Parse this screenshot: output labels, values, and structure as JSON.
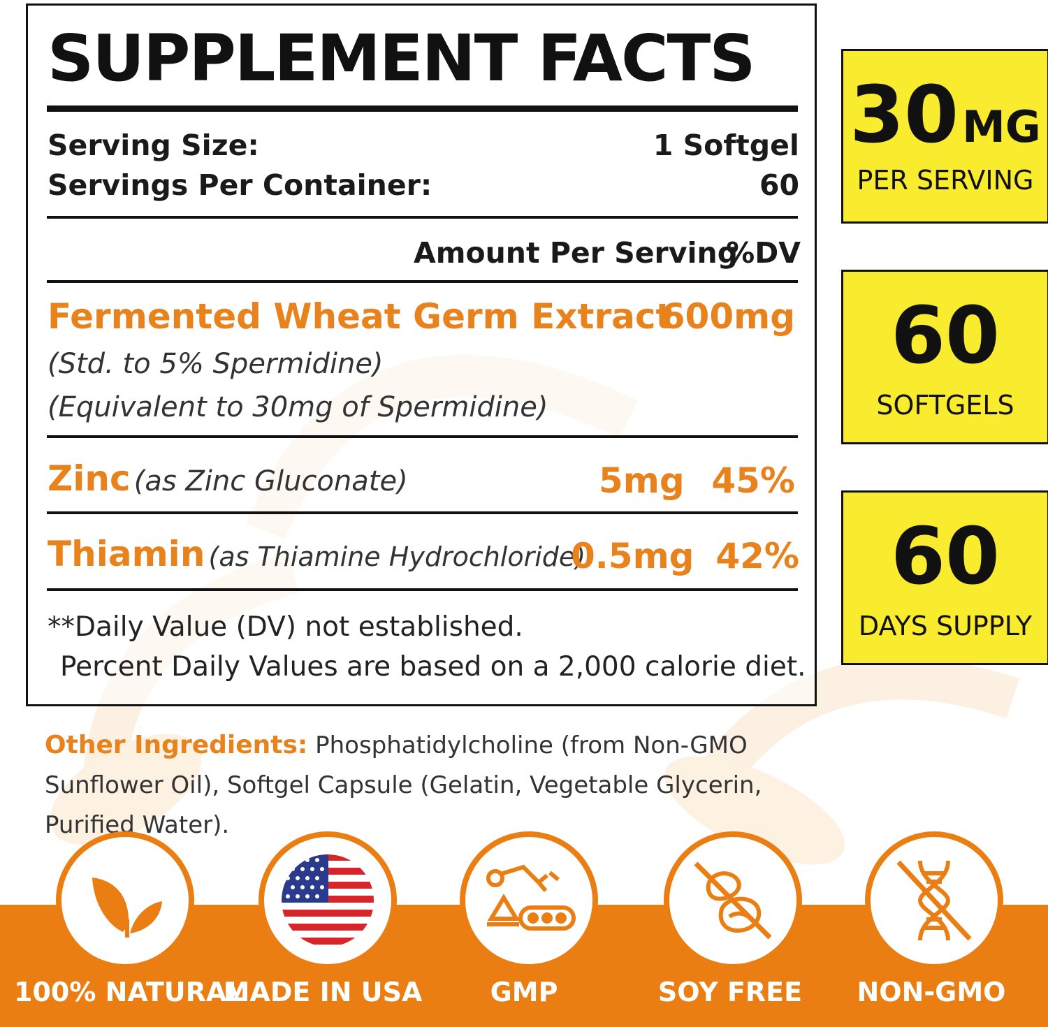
{
  "facts": {
    "title": "SUPPLEMENT FACTS",
    "serving_size_label": "Serving Size:",
    "serving_size_value": "1 Softgel",
    "servings_per_container_label": "Servings Per Container:",
    "servings_per_container_value": "60",
    "amount_header": "Amount Per Serving",
    "dv_header": "%DV",
    "ingredients": [
      {
        "name": "Fermented Wheat Germ Extract",
        "amount": "600mg",
        "sub1": "(Std. to 5% Spermidine)",
        "sub2": "(Equivalent to 30mg of Spermidine)"
      },
      {
        "name": "Zinc",
        "source": "(as Zinc Gluconate)",
        "amount": "5mg",
        "dv": "45%"
      },
      {
        "name": "Thiamin",
        "source": "(as Thiamine Hydrochloride)",
        "amount": "0.5mg",
        "dv": "42%"
      }
    ],
    "footnote1": "**Daily Value (DV) not established.",
    "footnote2": "Percent Daily Values are based on a 2,000 calorie diet."
  },
  "other_ingredients": {
    "label": "Other Ingredients:",
    "text": "Phosphatidylcholine (from Non-GMO Sunflower Oil), Softgel Capsule (Gelatin, Vegetable Glycerin, Purified Water)."
  },
  "badges": [
    {
      "big": "30",
      "unit": "MG",
      "small": "PER SERVING"
    },
    {
      "big": "60",
      "small": "SOFTGELS"
    },
    {
      "big": "60",
      "small": "DAYS SUPPLY"
    }
  ],
  "icons": [
    {
      "label": "100% NATURAL",
      "icon": "leaves-icon"
    },
    {
      "label": "MADE IN USA",
      "icon": "us-flag-icon"
    },
    {
      "label": "GMP",
      "icon": "factory-robot-icon"
    },
    {
      "label": "SOY FREE",
      "icon": "no-soy-icon"
    },
    {
      "label": "NON-GMO",
      "icon": "no-dna-icon"
    }
  ],
  "colors": {
    "accent": "#e8821c",
    "band": "#ea7e13",
    "badge": "#f9eb2d",
    "text": "#111111"
  }
}
